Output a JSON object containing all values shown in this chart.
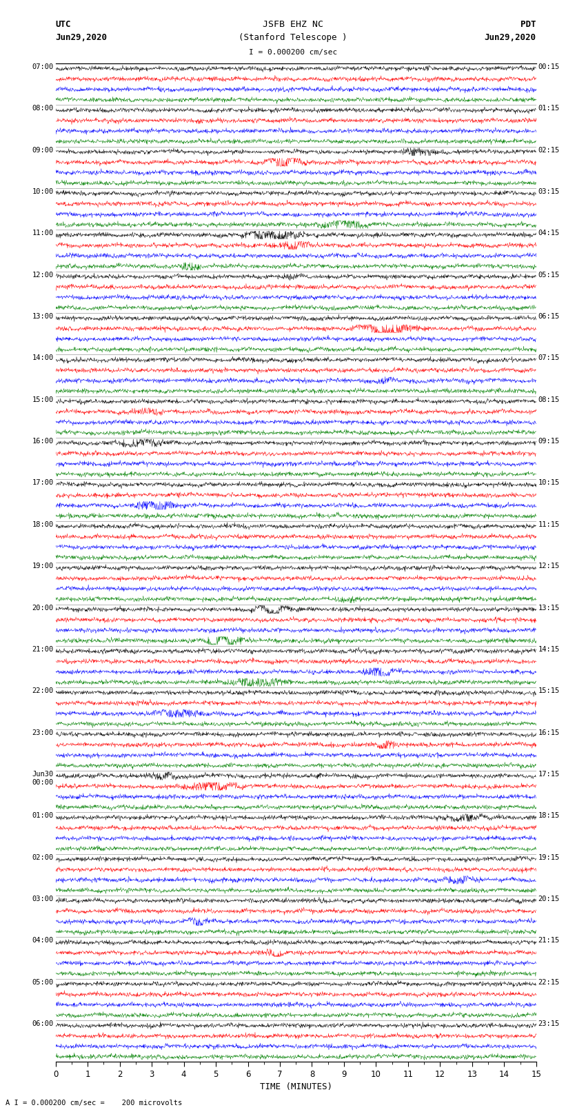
{
  "title_line1": "JSFB EHZ NC",
  "title_line2": "(Stanford Telescope )",
  "scale_label": "I = 0.000200 cm/sec",
  "bottom_label": "A I = 0.000200 cm/sec =    200 microvolts",
  "xlabel": "TIME (MINUTES)",
  "utc_header1": "UTC",
  "utc_header2": "Jun29,2020",
  "pdt_header1": "PDT",
  "pdt_header2": "Jun29,2020",
  "utc_times": [
    "07:00",
    "08:00",
    "09:00",
    "10:00",
    "11:00",
    "12:00",
    "13:00",
    "14:00",
    "15:00",
    "16:00",
    "17:00",
    "18:00",
    "19:00",
    "20:00",
    "21:00",
    "22:00",
    "23:00",
    "Jun30\n00:00",
    "01:00",
    "02:00",
    "03:00",
    "04:00",
    "05:00",
    "06:00"
  ],
  "pdt_times": [
    "00:15",
    "01:15",
    "02:15",
    "03:15",
    "04:15",
    "05:15",
    "06:15",
    "07:15",
    "08:15",
    "09:15",
    "10:15",
    "11:15",
    "12:15",
    "13:15",
    "14:15",
    "15:15",
    "16:15",
    "17:15",
    "18:15",
    "19:15",
    "20:15",
    "21:15",
    "22:15",
    "23:15"
  ],
  "colors": [
    "black",
    "red",
    "blue",
    "green"
  ],
  "n_hours": 24,
  "traces_per_hour": 4,
  "x_min": 0,
  "x_max": 15,
  "background_color": "white",
  "trace_amplitude": 0.38,
  "noise_amplitude": 0.1,
  "random_seed": 42,
  "n_points": 1500
}
